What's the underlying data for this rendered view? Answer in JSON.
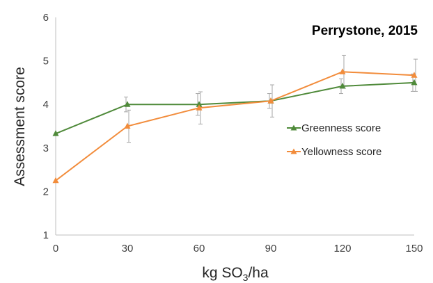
{
  "chart_data": {
    "type": "line",
    "title": "Perrystone, 2015",
    "xlabel": "kg SO3/ha",
    "xlabel_parts": {
      "main": "kg SO",
      "sub": "3",
      "tail": "/ha"
    },
    "ylabel": "Assessment score",
    "x": [
      0,
      30,
      60,
      90,
      120,
      150
    ],
    "x_tick_labels": [
      "0",
      "30",
      "60",
      "90",
      "120",
      "150"
    ],
    "y_tick_labels": [
      "1",
      "2",
      "3",
      "4",
      "5",
      "6"
    ],
    "xlim": [
      0,
      150
    ],
    "ylim": [
      1,
      6
    ],
    "grid": false,
    "legend_position": "right",
    "series": [
      {
        "name": "Greenness score",
        "color": "#4f8a3a",
        "marker": "triangle",
        "values": [
          3.33,
          4.0,
          4.0,
          4.08,
          4.42,
          4.5
        ],
        "error": [
          null,
          0.17,
          0.25,
          0.17,
          0.17,
          0.2
        ]
      },
      {
        "name": "Yellowness score",
        "color": "#f28c3b",
        "marker": "triangle",
        "values": [
          2.25,
          3.5,
          3.92,
          4.08,
          4.75,
          4.67
        ],
        "error": [
          null,
          0.37,
          0.37,
          0.37,
          0.38,
          0.37
        ]
      }
    ]
  }
}
